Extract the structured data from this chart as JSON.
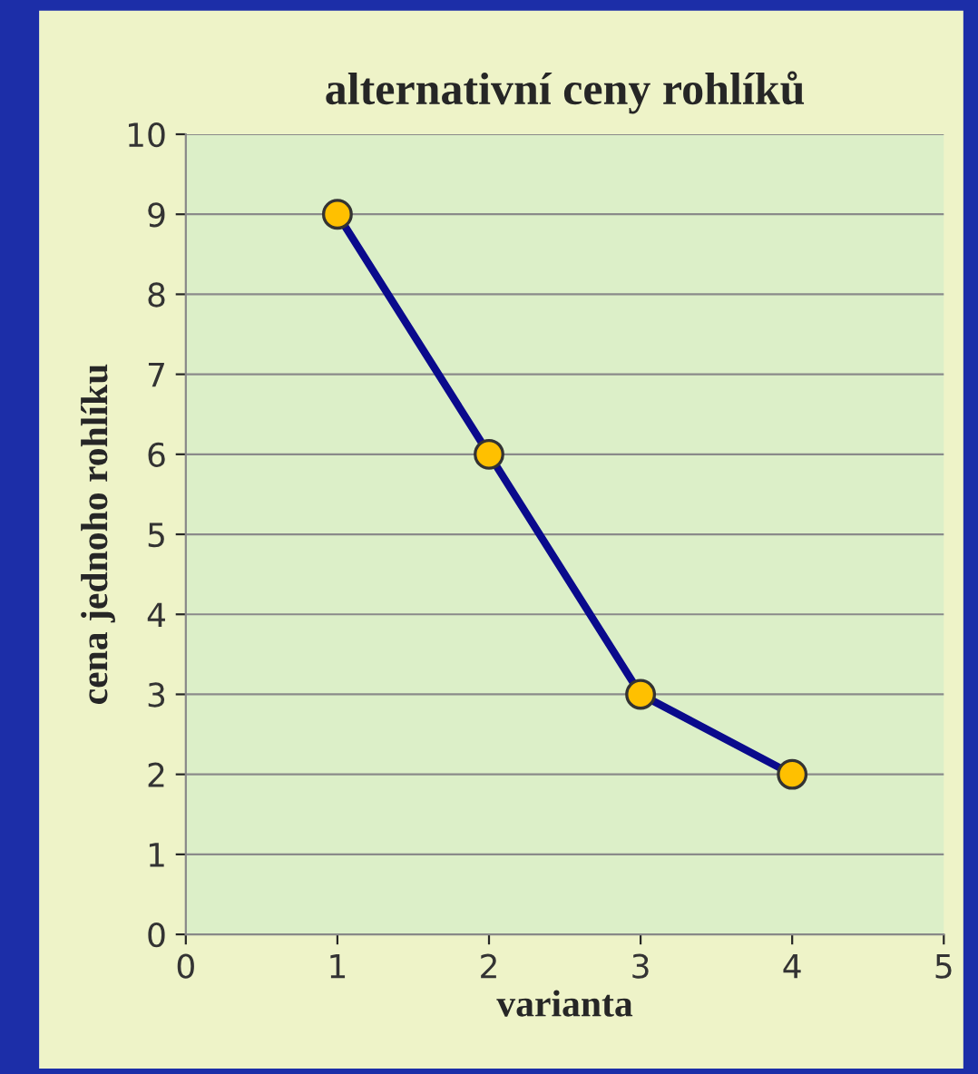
{
  "chart_data": {
    "type": "line",
    "title": "alternativní ceny rohlíků",
    "xlabel": "varianta",
    "ylabel": "cena jednoho rohlíku",
    "x": [
      1,
      2,
      3,
      4
    ],
    "series": [
      {
        "color": "#0a0a8c",
        "values": [
          9,
          6,
          3,
          2
        ]
      }
    ],
    "xlim": [
      0,
      5
    ],
    "xticks": [
      0,
      1,
      2,
      3,
      4,
      5
    ],
    "ylim": [
      0,
      10
    ],
    "yticks": [
      0,
      1,
      2,
      3,
      4,
      5,
      6,
      7,
      8,
      9,
      10
    ],
    "grid": "y",
    "marker": "circle",
    "line_style": "solid",
    "legend": false
  }
}
